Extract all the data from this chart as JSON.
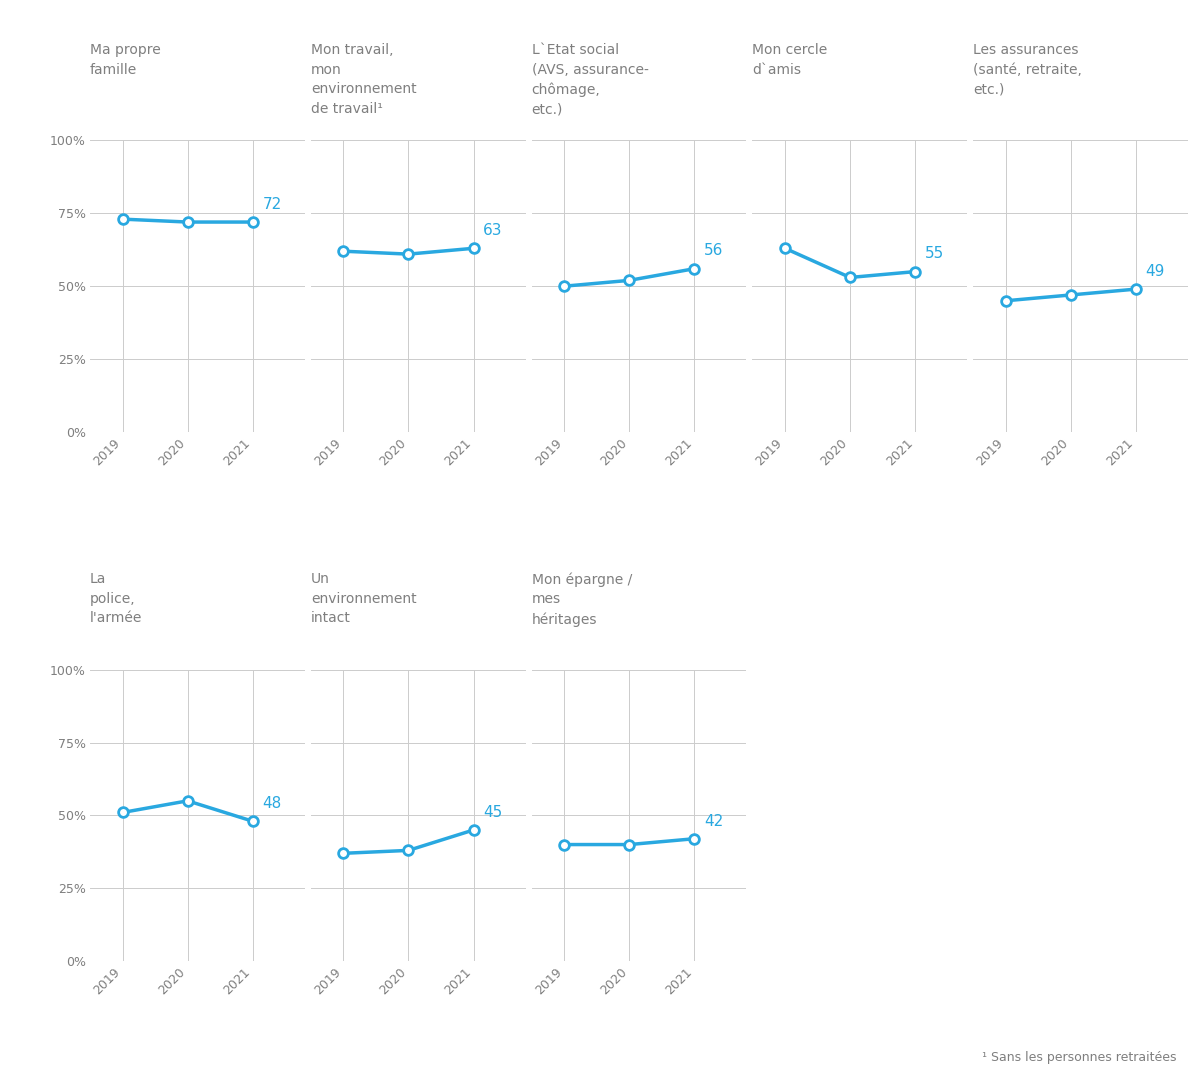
{
  "subplots": [
    {
      "title": "Ma propre\nfamille",
      "years": [
        2019,
        2020,
        2021
      ],
      "values": [
        73,
        72,
        72
      ],
      "last_label": "72"
    },
    {
      "title": "Mon travail,\nmon\nenvironnement\nde travail¹",
      "years": [
        2019,
        2020,
        2021
      ],
      "values": [
        62,
        61,
        63
      ],
      "last_label": "63"
    },
    {
      "title": "L`Etat social\n(AVS, assurance-\nchômage,\netc.)",
      "years": [
        2019,
        2020,
        2021
      ],
      "values": [
        50,
        52,
        56
      ],
      "last_label": "56"
    },
    {
      "title": "Mon cercle\nd`amis",
      "years": [
        2019,
        2020,
        2021
      ],
      "values": [
        63,
        53,
        55
      ],
      "last_label": "55"
    },
    {
      "title": "Les assurances\n(santé, retraite,\netc.)",
      "years": [
        2019,
        2020,
        2021
      ],
      "values": [
        45,
        47,
        49
      ],
      "last_label": "49"
    },
    {
      "title": "La\npolice,\nl'armée",
      "years": [
        2019,
        2020,
        2021
      ],
      "values": [
        51,
        55,
        48
      ],
      "last_label": "48"
    },
    {
      "title": "Un\nenvironnement\nintact",
      "years": [
        2019,
        2020,
        2021
      ],
      "values": [
        37,
        38,
        45
      ],
      "last_label": "45"
    },
    {
      "title": "Mon épargne /\nmes\nhéritages",
      "years": [
        2019,
        2020,
        2021
      ],
      "values": [
        40,
        40,
        42
      ],
      "last_label": "42"
    }
  ],
  "row1_count": 5,
  "row2_count": 3,
  "line_color": "#29a8e0",
  "marker_fill": "white",
  "marker_edge": "#29a8e0",
  "label_color": "#29a8e0",
  "title_color": "#7f7f7f",
  "tick_color": "#7f7f7f",
  "grid_color": "#cccccc",
  "bg_color": "#ffffff",
  "footnote": "¹ Sans les personnes retraitées",
  "ylim": [
    0,
    100
  ],
  "yticks": [
    0,
    25,
    50,
    75,
    100
  ],
  "ytick_labels": [
    "0%",
    "25%",
    "50%",
    "75%",
    "100%"
  ],
  "xlim": [
    2018.5,
    2021.8
  ],
  "title_fontsize": 10,
  "tick_fontsize": 9,
  "label_fontsize": 11,
  "footnote_fontsize": 9
}
